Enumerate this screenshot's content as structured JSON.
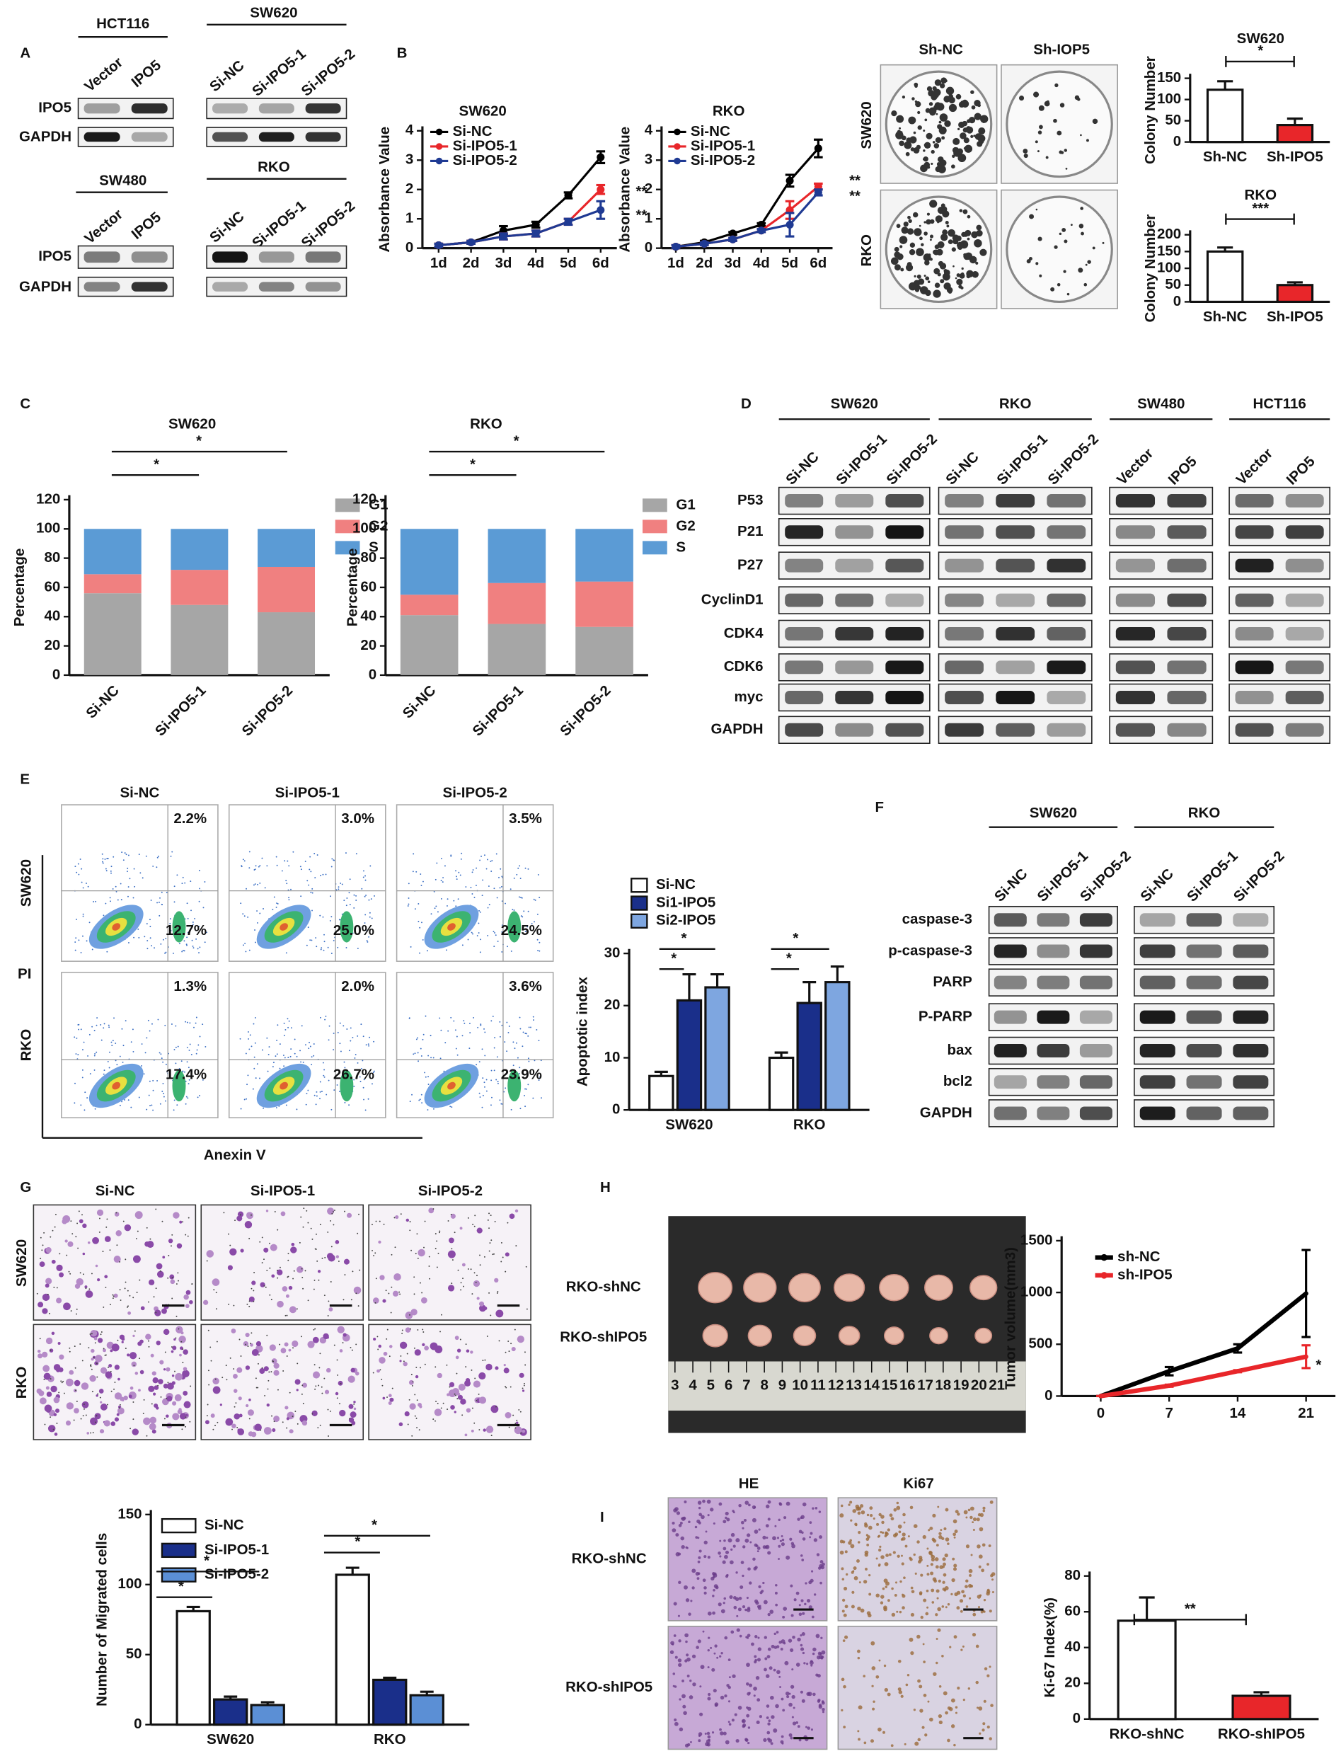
{
  "panels": [
    "A",
    "B",
    "C",
    "D",
    "E",
    "F",
    "G",
    "H",
    "I"
  ],
  "panel_a": {
    "blots": [
      {
        "cell": "HCT116",
        "lanes": [
          "Vector",
          "IPO5"
        ],
        "rows": [
          "IPO5",
          "GAPDH"
        ]
      },
      {
        "cell": "SW620",
        "lanes": [
          "Si-NC",
          "Si-IPO5-1",
          "Si-IPO5-2"
        ]
      },
      {
        "cell": "SW480",
        "lanes": [
          "Vector",
          "IPO5"
        ],
        "rows": [
          "IPO5",
          "GAPDH"
        ]
      },
      {
        "cell": "RKO",
        "lanes": [
          "Si-NC",
          "Si-IPO5-1",
          "Si-IPO5-2"
        ]
      }
    ]
  },
  "panel_b_colony": {
    "columns": [
      "Sh-NC",
      "Sh-IOP5"
    ],
    "rows": [
      "SW620",
      "RKO"
    ]
  },
  "panel_d": {
    "groups": [
      {
        "cell": "SW620",
        "lanes": [
          "Si-NC",
          "Si-IPO5-1",
          "Si-IPO5-2"
        ]
      },
      {
        "cell": "RKO",
        "lanes": [
          "Si-NC",
          "Si-IPO5-1",
          "Si-IPO5-2"
        ]
      },
      {
        "cell": "SW480",
        "lanes": [
          "Vector",
          "IPO5"
        ]
      },
      {
        "cell": "HCT116",
        "lanes": [
          "Vector",
          "IPO5"
        ]
      }
    ],
    "rows": [
      "P53",
      "P21",
      "P27",
      "CyclinD1",
      "CDK4",
      "CDK6",
      "myc",
      "GAPDH"
    ]
  },
  "panel_e_flow": {
    "columns": [
      "Si-NC",
      "Si-IPO5-1",
      "Si-IPO5-2"
    ],
    "rows": [
      "SW620",
      "RKO"
    ],
    "y_label": "PI",
    "x_label": "Anexin V",
    "upper_right": [
      [
        "2.2%",
        "3.0%",
        "3.5%"
      ],
      [
        "1.3%",
        "2.0%",
        "3.6%"
      ]
    ],
    "lower_right": [
      [
        "12.7%",
        "25.0%",
        "24.5%"
      ],
      [
        "17.4%",
        "26.7%",
        "23.9%"
      ]
    ]
  },
  "panel_f": {
    "groups": [
      {
        "cell": "SW620",
        "lanes": [
          "Si-NC",
          "Si-IPO5-1",
          "Si-IPO5-2"
        ]
      },
      {
        "cell": "RKO",
        "lanes": [
          "Si-NC",
          "Si-IPO5-1",
          "Si-IPO5-2"
        ]
      }
    ],
    "rows": [
      "caspase-3",
      "p-caspase-3",
      "PARP",
      "P-PARP",
      "bax",
      "bcl2",
      "GAPDH"
    ]
  },
  "panel_g": {
    "columns": [
      "Si-NC",
      "Si-IPO5-1",
      "Si-IPO5-2"
    ],
    "rows": [
      "SW620",
      "RKO"
    ]
  },
  "panel_h": {
    "rows": [
      "RKO-shNC",
      "RKO-shIPO5"
    ],
    "ruler": [
      3,
      4,
      5,
      6,
      7,
      8,
      9,
      10,
      11,
      12,
      13,
      14,
      15,
      16,
      17,
      18,
      19,
      20,
      21
    ]
  },
  "panel_i": {
    "columns": [
      "HE",
      "Ki67"
    ],
    "rows": [
      "RKO-shNC",
      "RKO-shIPO5"
    ]
  },
  "chart_data": [
    {
      "type": "line",
      "title": "SW620",
      "y_label": "Absorbance Value",
      "categories": [
        "1d",
        "2d",
        "3d",
        "4d",
        "5d",
        "6d"
      ],
      "ylim": [
        0,
        4
      ],
      "yticks": [
        0,
        1,
        2,
        3,
        4
      ],
      "series": [
        {
          "name": "Si-NC",
          "color": "#000000",
          "values": [
            0.1,
            0.2,
            0.6,
            0.8,
            1.8,
            3.1
          ],
          "errors": [
            0.05,
            0.05,
            0.15,
            0.1,
            0.1,
            0.2
          ]
        },
        {
          "name": "Si-IPO5-1",
          "color": "#e8262a",
          "values": [
            0.1,
            0.2,
            0.4,
            0.5,
            0.9,
            2.0
          ],
          "errors": [
            0.05,
            0.05,
            0.1,
            0.1,
            0.1,
            0.15
          ]
        },
        {
          "name": "Si-IPO5-2",
          "color": "#1f3a93",
          "values": [
            0.1,
            0.2,
            0.4,
            0.5,
            0.9,
            1.3
          ],
          "errors": [
            0.05,
            0.05,
            0.1,
            0.1,
            0.1,
            0.3
          ]
        }
      ],
      "annotations": [
        "**",
        "**"
      ]
    },
    {
      "type": "line",
      "title": "RKO",
      "y_label": "Absorbance Value",
      "categories": [
        "1d",
        "2d",
        "3d",
        "4d",
        "5d",
        "6d"
      ],
      "ylim": [
        0,
        4
      ],
      "yticks": [
        0,
        1,
        2,
        3,
        4
      ],
      "series": [
        {
          "name": "Si-NC",
          "color": "#000000",
          "values": [
            0.05,
            0.2,
            0.5,
            0.8,
            2.3,
            3.4
          ],
          "errors": [
            0.05,
            0.05,
            0.05,
            0.05,
            0.2,
            0.3
          ]
        },
        {
          "name": "Si-IPO5-1",
          "color": "#e8262a",
          "values": [
            0.05,
            0.15,
            0.3,
            0.6,
            1.3,
            2.1
          ],
          "errors": [
            0.05,
            0.05,
            0.05,
            0.05,
            0.3,
            0.1
          ]
        },
        {
          "name": "Si-IPO5-2",
          "color": "#1f3a93",
          "values": [
            0.05,
            0.15,
            0.3,
            0.6,
            0.8,
            1.9
          ],
          "errors": [
            0.05,
            0.05,
            0.05,
            0.05,
            0.4,
            0.1
          ]
        }
      ],
      "annotations": [
        "**",
        "**"
      ]
    },
    {
      "type": "bar",
      "title": "SW620",
      "y_label": "Colony Number",
      "categories": [
        "Sh-NC",
        "Sh-IPO5"
      ],
      "values": [
        123,
        40
      ],
      "errors": [
        20,
        15
      ],
      "colors": [
        "#ffffff",
        "#e8262a"
      ],
      "ylim": [
        0,
        150
      ],
      "yticks": [
        0,
        50,
        100,
        150
      ],
      "annotations": [
        "*"
      ]
    },
    {
      "type": "bar",
      "title": "RKO",
      "y_label": "Colony Number",
      "categories": [
        "Sh-NC",
        "Sh-IPO5"
      ],
      "values": [
        150,
        50
      ],
      "errors": [
        12,
        8
      ],
      "colors": [
        "#ffffff",
        "#e8262a"
      ],
      "ylim": [
        0,
        200
      ],
      "yticks": [
        0,
        50,
        100,
        150,
        200
      ],
      "annotations": [
        "***"
      ]
    },
    {
      "type": "stacked_bar",
      "title": "SW620",
      "y_label": "Percentage",
      "categories": [
        "Si-NC",
        "Si-IPO5-1",
        "Si-IPO5-2"
      ],
      "ylim": [
        0,
        120
      ],
      "yticks": [
        0,
        20,
        40,
        60,
        80,
        100,
        120
      ],
      "series": [
        {
          "name": "G1",
          "color": "#a6a6a6",
          "values": [
            56,
            48,
            43
          ]
        },
        {
          "name": "G2",
          "color": "#f08080",
          "values": [
            13,
            24,
            31
          ]
        },
        {
          "name": "S",
          "color": "#5b9bd5",
          "values": [
            31,
            28,
            26
          ]
        }
      ],
      "annotations": [
        "*",
        "*"
      ]
    },
    {
      "type": "stacked_bar",
      "title": "RKO",
      "y_label": "Percentage",
      "categories": [
        "Si-NC",
        "Si-IPO5-1",
        "Si-IPO5-2"
      ],
      "ylim": [
        0,
        120
      ],
      "yticks": [
        0,
        20,
        40,
        60,
        80,
        100,
        120
      ],
      "series": [
        {
          "name": "G1",
          "color": "#a6a6a6",
          "values": [
            41,
            35,
            33
          ]
        },
        {
          "name": "G2",
          "color": "#f08080",
          "values": [
            14,
            28,
            31
          ]
        },
        {
          "name": "S",
          "color": "#5b9bd5",
          "values": [
            45,
            37,
            36
          ]
        }
      ],
      "annotations": [
        "*",
        "*"
      ]
    },
    {
      "type": "bar",
      "y_label": "Apoptotic index",
      "categories": [
        "SW620",
        "RKO"
      ],
      "ylim": [
        0,
        30
      ],
      "yticks": [
        0,
        10,
        20,
        30
      ],
      "series": [
        {
          "name": "Si-NC",
          "color": "#ffffff",
          "values": [
            6.5,
            10
          ],
          "errors": [
            0.8,
            1
          ]
        },
        {
          "name": "Si1-IPO5",
          "color": "#1a2f8a",
          "values": [
            21,
            20.5
          ],
          "errors": [
            5,
            4
          ]
        },
        {
          "name": "Si2-IPO5",
          "color": "#7ea6e0",
          "values": [
            23.5,
            24.5
          ],
          "errors": [
            2.5,
            3
          ]
        }
      ],
      "annotations": [
        "*",
        "*",
        "*",
        "*"
      ]
    },
    {
      "type": "bar",
      "y_label": "Number of Migrated cells",
      "categories": [
        "SW620",
        "RKO"
      ],
      "ylim": [
        0,
        150
      ],
      "yticks": [
        0,
        50,
        100,
        150
      ],
      "series": [
        {
          "name": "Si-NC",
          "color": "#ffffff",
          "values": [
            81,
            107
          ],
          "errors": [
            3,
            5
          ]
        },
        {
          "name": "Si-IPO5-1",
          "color": "#1a2f8a",
          "values": [
            18,
            32
          ],
          "errors": [
            2,
            1.5
          ]
        },
        {
          "name": "Si-IPO5-2",
          "color": "#5b8fd5",
          "values": [
            14,
            21
          ],
          "errors": [
            2,
            2.5
          ]
        }
      ],
      "annotations": [
        "*",
        "*",
        "*",
        "*"
      ]
    },
    {
      "type": "line",
      "y_label": "Tumor volume(mm3)",
      "x": [
        0,
        7,
        14,
        21
      ],
      "xlim": [
        -4,
        24
      ],
      "xticks": [
        0,
        7,
        14,
        21
      ],
      "ylim": [
        0,
        1500
      ],
      "yticks": [
        0,
        500,
        1000,
        1500
      ],
      "series": [
        {
          "name": "sh-NC",
          "color": "#000000",
          "values": [
            0,
            240,
            460,
            990
          ],
          "errors": [
            0,
            40,
            40,
            420
          ]
        },
        {
          "name": "sh-IPO5",
          "color": "#e8262a",
          "values": [
            0,
            100,
            240,
            380
          ],
          "errors": [
            0,
            10,
            10,
            110
          ]
        }
      ],
      "annotations": [
        "*"
      ]
    },
    {
      "type": "bar",
      "y_label": "Ki-67 Index(%)",
      "categories": [
        "RKO-shNC",
        "RKO-shIPO5"
      ],
      "values": [
        55,
        13
      ],
      "errors": [
        13,
        2
      ],
      "colors": [
        "#ffffff",
        "#e8262a"
      ],
      "ylim": [
        0,
        80
      ],
      "yticks": [
        0,
        20,
        40,
        60,
        80
      ],
      "annotations": [
        "**"
      ]
    }
  ]
}
